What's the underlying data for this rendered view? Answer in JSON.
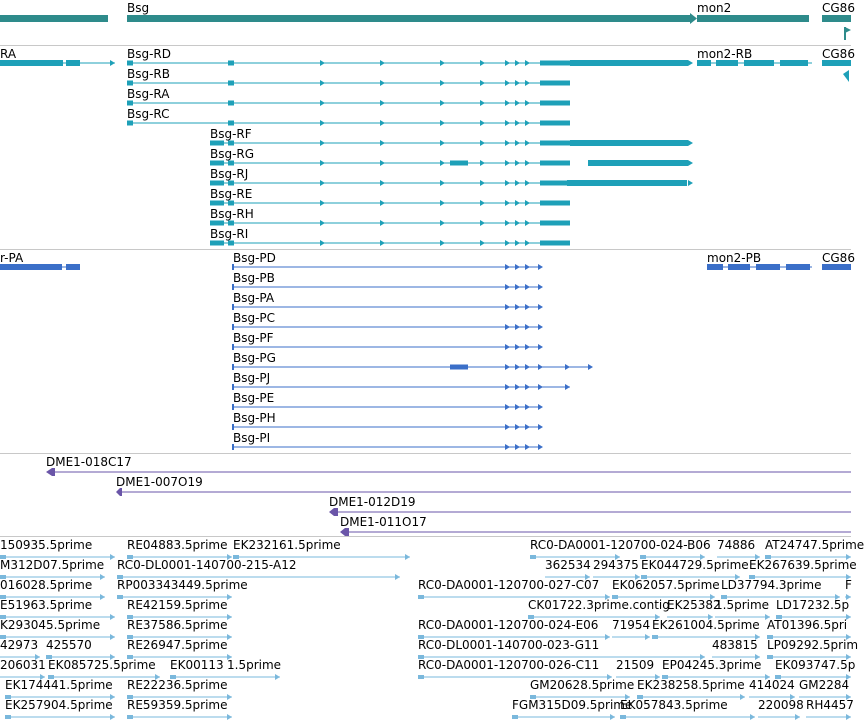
{
  "colors": {
    "gene": "#2e8b8b",
    "transcript": "#1ea0b8",
    "protein": "#3b6fc8",
    "clone": "#6a55a8",
    "est": "#7ab8dc",
    "track_border": "#c8c8c8"
  },
  "tracks": {
    "gene": {
      "features": [
        {
          "label": "Bsg",
          "kind": "gene"
        },
        {
          "label": "mon2",
          "kind": "gene"
        },
        {
          "label": "CG86",
          "kind": "gene"
        }
      ]
    },
    "transcript": {
      "features": [
        {
          "label": "RA"
        },
        {
          "label": "Bsg-RD"
        },
        {
          "label": "Bsg-RB"
        },
        {
          "label": "Bsg-RA"
        },
        {
          "label": "Bsg-RC"
        },
        {
          "label": "Bsg-RF"
        },
        {
          "label": "Bsg-RG"
        },
        {
          "label": "Bsg-RJ"
        },
        {
          "label": "Bsg-RE"
        },
        {
          "label": "Bsg-RH"
        },
        {
          "label": "Bsg-RI"
        },
        {
          "label": "mon2-RB"
        },
        {
          "label": "CG86"
        }
      ]
    },
    "protein": {
      "features": [
        {
          "label": "r-PA"
        },
        {
          "label": "Bsg-PD"
        },
        {
          "label": "Bsg-PB"
        },
        {
          "label": "Bsg-PA"
        },
        {
          "label": "Bsg-PC"
        },
        {
          "label": "Bsg-PF"
        },
        {
          "label": "Bsg-PG"
        },
        {
          "label": "Bsg-PJ"
        },
        {
          "label": "Bsg-PE"
        },
        {
          "label": "Bsg-PH"
        },
        {
          "label": "Bsg-PI"
        },
        {
          "label": "mon2-PB"
        },
        {
          "label": "CG86"
        }
      ]
    },
    "clone": {
      "features": [
        {
          "label": "DME1-018C17"
        },
        {
          "label": "DME1-007O19"
        },
        {
          "label": "DME1-012D19"
        },
        {
          "label": "DME1-011O17"
        }
      ]
    },
    "est": {
      "rows": [
        [
          "150935.5prime",
          "RE04883.5prime",
          "EK232161.5prime",
          "RC0-DA0001-120700-024-B06",
          "74886",
          "AT24747.5prime"
        ],
        [
          "M312D07.5prime",
          "RC0-DL0001-140700-215-A12",
          "362534",
          "294375",
          "EK044729.5prime",
          "EK267639.5prime"
        ],
        [
          "016028.5prime",
          "RP003343449.5prime",
          "RC0-DA0001-120700-027-C07",
          "EK062057.5prime",
          "LD37794.3prime",
          "F"
        ],
        [
          "E51963.5prime",
          "RE42159.5prime",
          "CK01722.3prime.contig",
          "EK25382",
          "1.5prime",
          "LD17232.5p"
        ],
        [
          "K293045.5prime",
          "RE37586.5prime",
          "RC0-DA0001-120700-024-E06",
          "71954",
          "EK261004.5prime",
          "AT01396.5pri"
        ],
        [
          "42973",
          "425570",
          "RE26947.5prime",
          "RC0-DL0001-140700-023-G11",
          "483815",
          "LP09292.5prim"
        ],
        [
          "206031",
          "EK085725.5prime",
          "EK00113",
          "1.5prime",
          "RC0-DA0001-120700-026-C11",
          "21509",
          "EP04245.3prime",
          "EK093747.5p"
        ],
        [
          "EK174441.5prime",
          "RE22236.5prime",
          "GM20628.5prime",
          "EK238258.5prime",
          "414024",
          "GM2284"
        ],
        [
          "EK257904.5prime",
          "RE59359.5prime",
          "FGM315D09.5prime",
          "EK057843.5prime",
          "220098",
          "RH4457"
        ]
      ]
    }
  }
}
